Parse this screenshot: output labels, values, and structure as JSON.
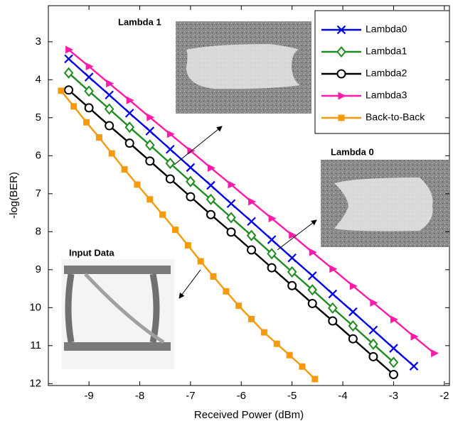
{
  "chart_data": {
    "type": "line",
    "xlabel": "Received Power (dBm)",
    "ylabel": "-log(BER)",
    "xlim": [
      -9.8,
      -1.9
    ],
    "ylim": [
      2.05,
      12.05
    ],
    "y_inverted": true,
    "xticks": [
      -9,
      -8,
      -7,
      -6,
      -5,
      -4,
      -3,
      -2
    ],
    "yticks": [
      3,
      4,
      5,
      6,
      7,
      8,
      9,
      10,
      11,
      12
    ],
    "grid": false,
    "legend": "upper right",
    "annotations": [
      "Lambda 1",
      "Lambda 0",
      "Input Data"
    ],
    "series": [
      {
        "name": "Lambda0",
        "color": "#0000ee",
        "marker": "x",
        "x": [
          -9.4,
          -9.0,
          -8.6,
          -8.2,
          -7.8,
          -7.4,
          -7.0,
          -6.6,
          -6.2,
          -5.8,
          -5.4,
          -5.0,
          -4.6,
          -4.2,
          -3.8,
          -3.4,
          -3.0,
          -2.6
        ],
        "values": [
          3.45,
          3.93,
          4.4,
          4.88,
          5.35,
          5.83,
          6.31,
          6.78,
          7.26,
          7.73,
          8.21,
          8.69,
          9.16,
          9.64,
          10.11,
          10.59,
          11.07,
          11.54
        ]
      },
      {
        "name": "Lambda1",
        "color": "#1e8c1e",
        "marker": "diamond",
        "x": [
          -9.4,
          -9.0,
          -8.6,
          -8.2,
          -7.8,
          -7.4,
          -7.0,
          -6.6,
          -6.2,
          -5.8,
          -5.4,
          -5.0,
          -4.6,
          -4.2,
          -3.8,
          -3.4,
          -3.0
        ],
        "values": [
          3.82,
          4.3,
          4.77,
          5.25,
          5.72,
          6.2,
          6.68,
          7.15,
          7.63,
          8.1,
          8.58,
          9.06,
          9.53,
          10.01,
          10.48,
          10.96,
          11.44
        ]
      },
      {
        "name": "Lambda2",
        "color": "#000000",
        "marker": "circle",
        "x": [
          -9.4,
          -9.0,
          -8.6,
          -8.2,
          -7.8,
          -7.4,
          -7.0,
          -6.6,
          -6.2,
          -5.8,
          -5.4,
          -5.0,
          -4.6,
          -4.2,
          -3.8,
          -3.4,
          -3.0
        ],
        "values": [
          4.27,
          4.74,
          5.21,
          5.67,
          6.14,
          6.61,
          7.08,
          7.55,
          8.01,
          8.48,
          8.95,
          9.42,
          9.89,
          10.35,
          10.82,
          11.29,
          11.76
        ]
      },
      {
        "name": "Lambda3",
        "color": "#ff1aa8",
        "marker": "triangle",
        "x": [
          -9.4,
          -9.0,
          -8.6,
          -8.2,
          -7.8,
          -7.4,
          -7.0,
          -6.6,
          -6.2,
          -5.8,
          -5.4,
          -5.0,
          -4.6,
          -4.2,
          -3.8,
          -3.4,
          -3.0,
          -2.6,
          -2.2
        ],
        "values": [
          3.21,
          3.65,
          4.1,
          4.54,
          4.99,
          5.43,
          5.87,
          6.32,
          6.76,
          7.21,
          7.65,
          8.09,
          8.54,
          8.98,
          9.43,
          9.87,
          10.31,
          10.76,
          11.2
        ]
      },
      {
        "name": "Back-to-Back",
        "color": "#f59a0a",
        "marker": "square",
        "x": [
          -9.55,
          -9.3,
          -9.05,
          -8.8,
          -8.55,
          -8.3,
          -8.05,
          -7.8,
          -7.55,
          -7.3,
          -7.05,
          -6.8,
          -6.55,
          -6.3,
          -6.05,
          -5.8,
          -5.55,
          -5.3,
          -5.05,
          -4.8,
          -4.55
        ],
        "values": [
          4.29,
          4.7,
          5.12,
          5.52,
          5.94,
          6.36,
          6.76,
          7.15,
          7.55,
          7.95,
          8.36,
          8.78,
          9.18,
          9.57,
          9.95,
          10.3,
          10.65,
          10.95,
          11.25,
          11.55,
          11.88
        ]
      }
    ]
  }
}
